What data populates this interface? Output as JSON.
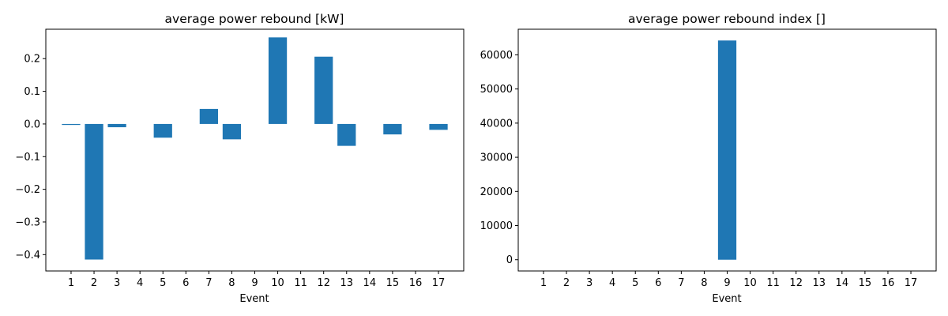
{
  "chart_data": [
    {
      "type": "bar",
      "title": "average power rebound [kW]",
      "xlabel": "Event",
      "ylabel": "",
      "categories": [
        "1",
        "2",
        "3",
        "4",
        "5",
        "6",
        "7",
        "8",
        "9",
        "10",
        "11",
        "12",
        "13",
        "14",
        "15",
        "16",
        "17"
      ],
      "values": [
        -0.003,
        -0.415,
        -0.01,
        0,
        -0.042,
        0,
        0.046,
        -0.047,
        0,
        0.265,
        0,
        0.206,
        -0.067,
        0,
        -0.032,
        0,
        -0.018
      ],
      "ylim": [
        -0.45,
        0.29
      ],
      "yticks": [
        -0.4,
        -0.3,
        -0.2,
        -0.1,
        0.0,
        0.1,
        0.2
      ],
      "ytick_labels": [
        "−0.4",
        "−0.3",
        "−0.2",
        "−0.1",
        "0.0",
        "0.1",
        "0.2"
      ],
      "grid": false,
      "bar_color": "#1f77b4"
    },
    {
      "type": "bar",
      "title": "average power rebound index []",
      "xlabel": "Event",
      "ylabel": "",
      "categories": [
        "1",
        "2",
        "3",
        "4",
        "5",
        "6",
        "7",
        "8",
        "9",
        "10",
        "11",
        "12",
        "13",
        "14",
        "15",
        "16",
        "17"
      ],
      "values": [
        0,
        0,
        0,
        0,
        0,
        0,
        0,
        0,
        64200,
        0,
        0,
        0,
        0,
        0,
        0,
        0,
        0
      ],
      "ylim": [
        -3300,
        67500
      ],
      "yticks": [
        0,
        10000,
        20000,
        30000,
        40000,
        50000,
        60000
      ],
      "ytick_labels": [
        "0",
        "10000",
        "20000",
        "30000",
        "40000",
        "50000",
        "60000"
      ],
      "grid": false,
      "bar_color": "#1f77b4"
    }
  ]
}
